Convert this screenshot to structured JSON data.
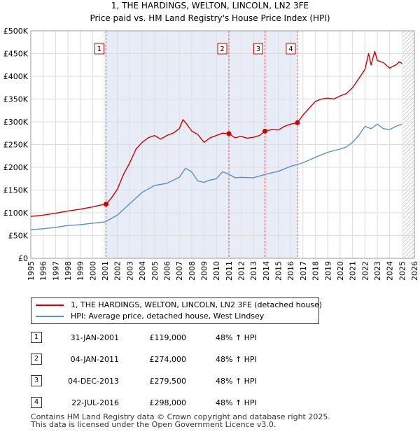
{
  "chart_data": {
    "type": "line",
    "title": "1, THE HARDINGS, WELTON, LINCOLN, LN2 3FE",
    "subtitle": "Price paid vs. HM Land Registry's House Price Index (HPI)",
    "x_ticks": [
      "1995",
      "1996",
      "1997",
      "1998",
      "1999",
      "2000",
      "2001",
      "2002",
      "2003",
      "2004",
      "2005",
      "2006",
      "2007",
      "2008",
      "2009",
      "2010",
      "2011",
      "2012",
      "2013",
      "2014",
      "2015",
      "2016",
      "2017",
      "2018",
      "2019",
      "2020",
      "2021",
      "2022",
      "2023",
      "2024",
      "2025",
      "2026"
    ],
    "y_ticks": [
      "£0",
      "£50K",
      "£100K",
      "£150K",
      "£200K",
      "£250K",
      "£300K",
      "£350K",
      "£400K",
      "£450K",
      "£500K"
    ],
    "xlim": [
      1995,
      2026
    ],
    "ylim": [
      0,
      500000
    ],
    "grid": true,
    "shaded_range": [
      2001.08,
      2016.55
    ],
    "future_hatch_from": 2025.1,
    "colors": {
      "property": "#cc0000",
      "hpi": "#5b8fc9",
      "shade": "#e7ecf7",
      "vline": "#d06060"
    },
    "series": [
      {
        "name": "1, THE HARDINGS, WELTON, LINCOLN, LN2 3FE (detached house)",
        "color": "#cc0000",
        "x": [
          1995,
          1996,
          1997,
          1998,
          1999,
          2000,
          2000.5,
          2001.08,
          2001.5,
          2002,
          2002.5,
          2003,
          2003.5,
          2004,
          2004.5,
          2005,
          2005.5,
          2006,
          2006.5,
          2007,
          2007.3,
          2007.6,
          2008,
          2008.5,
          2009,
          2009.5,
          2010,
          2010.5,
          2011.04,
          2011.5,
          2012,
          2012.5,
          2013,
          2013.5,
          2013.92,
          2014.5,
          2015,
          2015.5,
          2016,
          2016.55,
          2017,
          2017.5,
          2018,
          2018.5,
          2019,
          2019.5,
          2020,
          2020.5,
          2021,
          2021.5,
          2022,
          2022.3,
          2022.5,
          2022.8,
          2023,
          2023.5,
          2024,
          2024.5,
          2024.8,
          2025
        ],
        "values": [
          92000,
          95000,
          99000,
          104000,
          108000,
          113000,
          116000,
          119000,
          132000,
          152000,
          185000,
          210000,
          240000,
          255000,
          265000,
          270000,
          262000,
          270000,
          275000,
          285000,
          305000,
          295000,
          280000,
          272000,
          255000,
          265000,
          270000,
          275000,
          274000,
          265000,
          268000,
          264000,
          266000,
          270000,
          279500,
          283000,
          282000,
          290000,
          295000,
          298000,
          315000,
          330000,
          345000,
          350000,
          352000,
          350000,
          357000,
          362000,
          375000,
          395000,
          415000,
          450000,
          425000,
          455000,
          435000,
          430000,
          418000,
          425000,
          432000,
          428000
        ]
      },
      {
        "name": "HPI: Average price, detached house, West Lindsey",
        "color": "#5b8fc9",
        "x": [
          1995,
          1996,
          1997,
          1998,
          1999,
          2000,
          2001,
          2002,
          2003,
          2004,
          2005,
          2006,
          2007,
          2007.5,
          2008,
          2008.5,
          2009,
          2009.5,
          2010,
          2010.5,
          2011,
          2011.5,
          2012,
          2013,
          2014,
          2015,
          2016,
          2017,
          2018,
          2019,
          2020,
          2020.5,
          2021,
          2021.5,
          2022,
          2022.5,
          2023,
          2023.5,
          2024,
          2024.5,
          2025
        ],
        "values": [
          63000,
          65000,
          68000,
          72000,
          74000,
          77000,
          80000,
          95000,
          120000,
          145000,
          160000,
          165000,
          178000,
          198000,
          190000,
          170000,
          167000,
          172000,
          175000,
          190000,
          185000,
          177000,
          178000,
          177000,
          185000,
          191000,
          202000,
          210000,
          222000,
          233000,
          240000,
          245000,
          255000,
          270000,
          290000,
          285000,
          295000,
          285000,
          283000,
          290000,
          295000
        ]
      }
    ],
    "markers": [
      {
        "label": "1",
        "x": 2001.08,
        "y": 119000
      },
      {
        "label": "2",
        "x": 2011.01,
        "y": 274000
      },
      {
        "label": "3",
        "x": 2013.92,
        "y": 279500
      },
      {
        "label": "4",
        "x": 2016.55,
        "y": 298000
      }
    ]
  },
  "legend": {
    "property": "1, THE HARDINGS, WELTON, LINCOLN, LN2 3FE (detached house)",
    "hpi": "HPI: Average price, detached house, West Lindsey"
  },
  "sales": [
    {
      "num": "1",
      "date": "31-JAN-2001",
      "price": "£119,000",
      "hpi": "48% ↑ HPI"
    },
    {
      "num": "2",
      "date": "04-JAN-2011",
      "price": "£274,000",
      "hpi": "48% ↑ HPI"
    },
    {
      "num": "3",
      "date": "04-DEC-2013",
      "price": "£279,500",
      "hpi": "48% ↑ HPI"
    },
    {
      "num": "4",
      "date": "22-JUL-2016",
      "price": "£298,000",
      "hpi": "48% ↑ HPI"
    }
  ],
  "footer": {
    "line1": "Contains HM Land Registry data © Crown copyright and database right 2025.",
    "line2": "This data is licensed under the Open Government Licence v3.0."
  }
}
